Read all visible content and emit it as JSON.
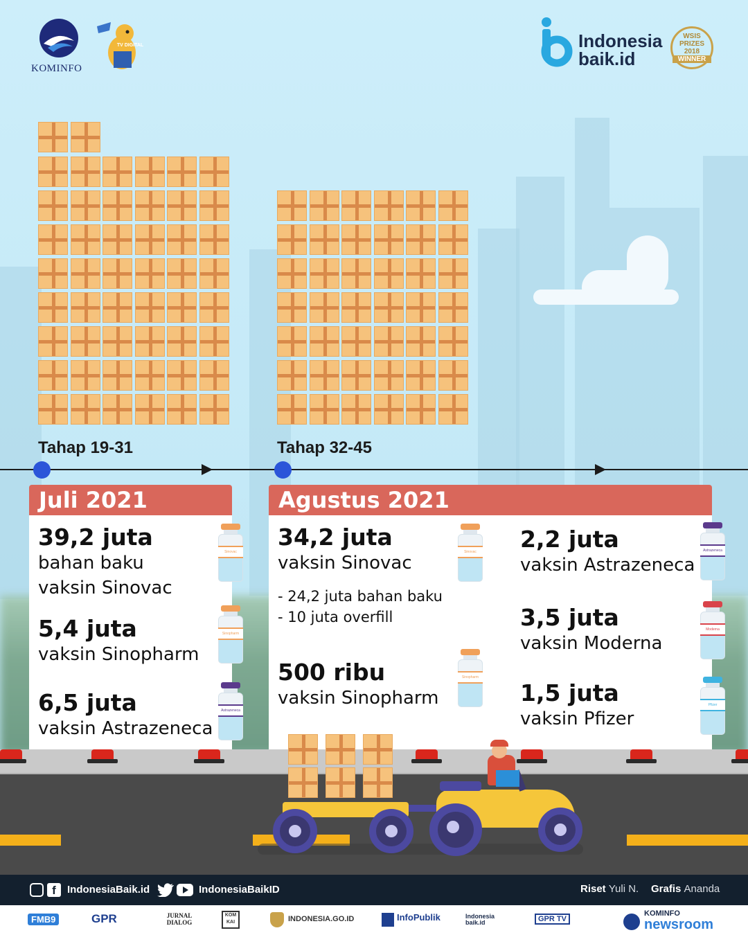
{
  "header": {
    "kominfo_label": "KOMINFO",
    "tv_digital_label": "TV DIGITAL",
    "brand_line1": "Indonesia",
    "brand_line2": "baik.id",
    "award_line1": "WSIS",
    "award_line2": "PRIZES",
    "award_line3": "2018",
    "award_line4": "WINNER"
  },
  "timeline": {
    "stage1": "Tahap 19-31",
    "stage2": "Tahap 32-45"
  },
  "juli": {
    "title": "Juli 2021",
    "items": [
      {
        "amount": "39,2 juta",
        "desc1": "bahan baku",
        "desc2": "vaksin Sinovac",
        "vial_label": "Sinovac",
        "vial_color": "#f0a05a"
      },
      {
        "amount": "5,4 juta",
        "desc1": "vaksin Sinopharm",
        "vial_label": "Sinopharm",
        "vial_color": "#f0a05a"
      },
      {
        "amount": "6,5   juta",
        "desc1": "vaksin Astrazeneca",
        "vial_label": "Astrazeneca",
        "vial_color": "#5b3a8c"
      }
    ]
  },
  "agustus": {
    "title": "Agustus 2021",
    "left": [
      {
        "amount": "34,2 juta",
        "desc1": "vaksin Sinovac",
        "vial_label": "Sinovac",
        "vial_color": "#f0a05a"
      },
      {
        "amount": "500 ribu",
        "desc1": "vaksin Sinopharm",
        "vial_label": "Sinopharm",
        "vial_color": "#f0a05a"
      }
    ],
    "sub_items": [
      "-  24,2   juta bahan baku",
      "- 10 juta overfill"
    ],
    "right": [
      {
        "amount": "2,2 juta",
        "desc1": "vaksin Astrazeneca",
        "vial_label": "Astrazeneca",
        "vial_color": "#5b3a8c"
      },
      {
        "amount": "3,5 juta",
        "desc1": "vaksin Moderna",
        "vial_label": "Moderna",
        "vial_color": "#d9434a"
      },
      {
        "amount": "1,5 juta",
        "desc1": "vaksin Pfizer",
        "vial_label": "Pfizer",
        "vial_color": "#3fb3e0"
      }
    ]
  },
  "footer": {
    "social1": "IndonesiaBaik.id",
    "social2": "IndonesiaBaikID",
    "riset_label": "Riset",
    "riset_name": "Yuli N.",
    "grafis_label": "Grafis",
    "grafis_name": "Ananda",
    "logos": [
      "FMB9",
      "GPR",
      "JURNAL DIALOG",
      "KOM KAI",
      "INDONESIA.GO.ID",
      "InfoPublik",
      "Indonesia baik.id",
      "GPR TV",
      "KOMINFO",
      "newsroom"
    ]
  }
}
